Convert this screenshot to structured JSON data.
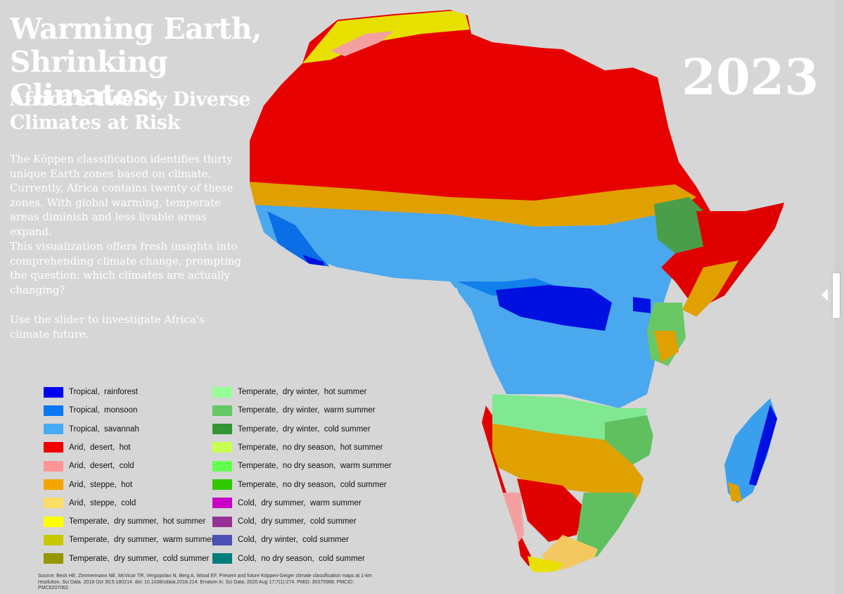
{
  "header": {
    "title": "Warming Earth, Shrinking Climates:",
    "subtitle": "Africa's Twenty Diverse Climates at Risk"
  },
  "description": {
    "p1": "The Köppen classification identifies thirty unique Earth zones based on climate. Currently, Africa contains twenty of these zones. With global warming, temperate areas diminish and less livable areas expand.",
    "p2": "This visualization offers fresh insights into comprehending climate change, prompting the question: which climates are actually changing?",
    "p3": "Use the slider to investigate Africa's climate future."
  },
  "year": "2023",
  "legend": {
    "left": [
      {
        "label": "Tropical,  rainforest",
        "color": "#0000ee"
      },
      {
        "label": "Tropical,  monsoon",
        "color": "#0a78f0"
      },
      {
        "label": "Tropical,  savannah",
        "color": "#46aaf5"
      },
      {
        "label": "Arid,  desert,  hot",
        "color": "#f00000"
      },
      {
        "label": "Arid,  desert,  cold",
        "color": "#ff9696"
      },
      {
        "label": "Arid,  steppe,  hot",
        "color": "#f5a500"
      },
      {
        "label": "Arid,  steppe,  cold",
        "color": "#ffdc64"
      },
      {
        "label": "Temperate,  dry summer,  hot summer",
        "color": "#ffff00"
      },
      {
        "label": "Temperate,  dry summer,  warm summer",
        "color": "#c8c800"
      },
      {
        "label": "Temperate,  dry summer,  cold summer",
        "color": "#969600"
      }
    ],
    "right": [
      {
        "label": "Temperate,  dry winter,  hot summer",
        "color": "#96ff96"
      },
      {
        "label": "Temperate,  dry winter,  warm summer",
        "color": "#64c864"
      },
      {
        "label": "Temperate,  dry winter,  cold summer",
        "color": "#329632"
      },
      {
        "label": "Temperate,  no dry season,  hot summer",
        "color": "#c8ff50"
      },
      {
        "label": "Temperate,  no dry season,  warm summer",
        "color": "#64ff50"
      },
      {
        "label": "Temperate,  no dry season,  cold summer",
        "color": "#32c800"
      },
      {
        "label": "Cold,  dry summer,  warm summer",
        "color": "#c800c8"
      },
      {
        "label": "Cold,  dry summer,  cold summer",
        "color": "#963296"
      },
      {
        "label": "Cold,  dry winter,  cold summer",
        "color": "#4b50b4"
      },
      {
        "label": "Cold,  no dry season,  cold summer",
        "color": "#007d7d"
      }
    ]
  },
  "source": "Source: Beck HE, Zimmermann NE, McVicar TR, Vergopolan N, Berg A, Wood EF. Present and future Köppen-Geiger climate classification maps at 1-km resolution. Sci Data. 2018 Oct 30;5:180214. doi: 10.1038/sdata.2018.214. Erratum in: Sci Data. 2020 Aug 17;7(1):274. PMID: 30375988; PMCID: PMC6207062.",
  "slider": {
    "direction": "left-arrow",
    "handle_color": "#ffffff"
  }
}
